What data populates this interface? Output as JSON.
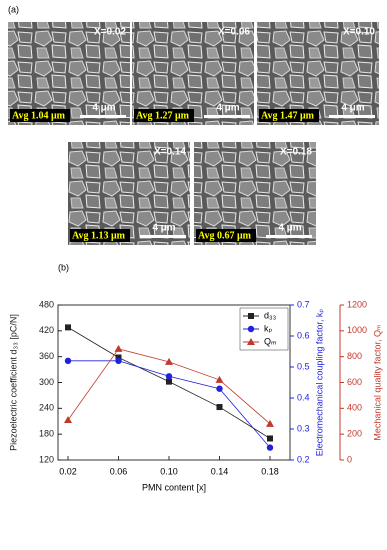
{
  "panel_a": {
    "label": "(a)",
    "images": [
      {
        "composition": "X=0.02",
        "grain_size": "Avg 1.04 μm",
        "scale_bar": "4 μm"
      },
      {
        "composition": "X=0.06",
        "grain_size": "Avg 1.27 μm",
        "scale_bar": "4 μm"
      },
      {
        "composition": "X=0.10",
        "grain_size": "Avg 1.47 μm",
        "scale_bar": "4 μm"
      },
      {
        "composition": "X=0.14",
        "grain_size": "Avg 1.13 μm",
        "scale_bar": "4 μm"
      },
      {
        "composition": "X=0.18",
        "grain_size": "Avg 0.67 μm",
        "scale_bar": "4 μm"
      }
    ]
  },
  "chart_data": {
    "type": "line",
    "panel_label": "(b)",
    "x_label": "PMN content [x]",
    "categories": [
      "0.02",
      "0.06",
      "0.10",
      "0.14",
      "0.18"
    ],
    "series": [
      {
        "name": "d₃₃",
        "color": "#222222",
        "marker": "square",
        "axis": "y",
        "values": [
          428,
          358,
          302,
          243,
          170
        ]
      },
      {
        "name": "kₚ",
        "color": "#2222dd",
        "marker": "circle",
        "axis": "y2",
        "values": [
          0.52,
          0.52,
          0.47,
          0.43,
          0.24
        ]
      },
      {
        "name": "Qₘ",
        "color": "#c0392b",
        "marker": "triangle",
        "axis": "y3",
        "values": [
          310,
          860,
          760,
          620,
          280
        ]
      }
    ],
    "y_label": "Piezoelectric coefficient d₃₃ [pC/N]",
    "ylim": [
      120,
      480
    ],
    "yticks": [
      120,
      180,
      240,
      300,
      360,
      420,
      480
    ],
    "y2_label": "Electromechanical coupling factor, kₚ",
    "y2lim": [
      0.2,
      0.7
    ],
    "y2ticks": [
      0.2,
      0.3,
      0.4,
      0.5,
      0.6,
      0.7
    ],
    "y3_label": "Mechanical quality factor, Qₘ",
    "y3lim": [
      0,
      1200
    ],
    "y3ticks": [
      0,
      200,
      400,
      600,
      800,
      1000,
      1200
    ],
    "legend": "upper right"
  }
}
